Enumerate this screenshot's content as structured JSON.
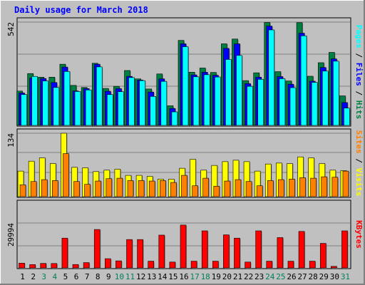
{
  "title": "Daily usage for March 2018",
  "chart_data": [
    {
      "type": "bar",
      "panel": "hits-files-pages",
      "categories": [
        "1",
        "2",
        "3",
        "4",
        "5",
        "6",
        "7",
        "8",
        "9",
        "10",
        "11",
        "12",
        "13",
        "14",
        "15",
        "16",
        "17",
        "18",
        "19",
        "20",
        "21",
        "22",
        "23",
        "24",
        "25",
        "26",
        "27",
        "28",
        "29",
        "30",
        "31"
      ],
      "weekend_days": [
        "3",
        "4",
        "10",
        "11",
        "17",
        "18",
        "24",
        "25",
        "31"
      ],
      "ytick": "542",
      "ymax": 542,
      "series": [
        {
          "name": "Hits",
          "color": "#008040",
          "values": [
            180,
            272,
            253,
            253,
            321,
            210,
            199,
            326,
            194,
            205,
            288,
            244,
            191,
            270,
            103,
            446,
            279,
            301,
            278,
            428,
            453,
            235,
            276,
            540,
            282,
            233,
            539,
            258,
            329,
            383,
            155
          ]
        },
        {
          "name": "Files",
          "color": "#0000ff",
          "values": [
            170,
            249,
            246,
            225,
            306,
            181,
            193,
            321,
            179,
            193,
            257,
            238,
            175,
            244,
            89,
            428,
            265,
            279,
            263,
            404,
            428,
            219,
            253,
            521,
            256,
            216,
            484,
            232,
            304,
            349,
            120
          ]
        },
        {
          "name": "Pages",
          "color": "#00ffff",
          "values": [
            162,
            257,
            233,
            199,
            283,
            178,
            186,
            307,
            162,
            177,
            251,
            235,
            152,
            231,
            71,
            413,
            255,
            266,
            254,
            346,
            367,
            205,
            242,
            501,
            245,
            198,
            470,
            226,
            285,
            337,
            91
          ]
        }
      ],
      "side_label": [
        "Pages",
        "Files",
        "Hits"
      ]
    },
    {
      "type": "bar",
      "panel": "visits-sites",
      "categories": [
        "1",
        "2",
        "3",
        "4",
        "5",
        "6",
        "7",
        "8",
        "9",
        "10",
        "11",
        "12",
        "13",
        "14",
        "15",
        "16",
        "17",
        "18",
        "19",
        "20",
        "21",
        "22",
        "23",
        "24",
        "25",
        "26",
        "27",
        "28",
        "29",
        "30",
        "31"
      ],
      "ytick": "134",
      "ymax": 134,
      "series": [
        {
          "name": "Visits",
          "color": "#ffff00",
          "values": [
            54,
            75,
            82,
            70,
            134,
            62,
            61,
            53,
            56,
            58,
            45,
            45,
            43,
            37,
            37,
            60,
            79,
            56,
            66,
            74,
            77,
            74,
            54,
            69,
            71,
            70,
            84,
            82,
            70,
            56,
            55
          ]
        },
        {
          "name": "Sites",
          "color": "#ff8000",
          "values": [
            25,
            32,
            36,
            34,
            91,
            32,
            26,
            33,
            38,
            39,
            34,
            34,
            33,
            34,
            30,
            45,
            23,
            39,
            22,
            33,
            36,
            32,
            23,
            34,
            36,
            37,
            40,
            39,
            42,
            41,
            54
          ]
        }
      ],
      "side_label": [
        "Sites",
        "Visits"
      ]
    },
    {
      "type": "bar",
      "panel": "kbytes",
      "categories": [
        "1",
        "2",
        "3",
        "4",
        "5",
        "6",
        "7",
        "8",
        "9",
        "10",
        "11",
        "12",
        "13",
        "14",
        "15",
        "16",
        "17",
        "18",
        "19",
        "20",
        "21",
        "22",
        "23",
        "24",
        "25",
        "26",
        "27",
        "28",
        "29",
        "30",
        "31"
      ],
      "ytick": "29994",
      "ymax": 29994,
      "series": [
        {
          "name": "KBytes",
          "color": "#ff0000",
          "values": [
            3185,
            2220,
            3003,
            2949,
            19894,
            2275,
            3549,
            25664,
            6159,
            4696,
            18955,
            18955,
            4491,
            21911,
            3912,
            28629,
            4491,
            24754,
            4491,
            22094,
            19894,
            3912,
            24754,
            4491,
            20260,
            4491,
            24391,
            4491,
            16391,
            1037,
            24754
          ]
        }
      ],
      "side_label": [
        "KBytes"
      ]
    }
  ]
}
